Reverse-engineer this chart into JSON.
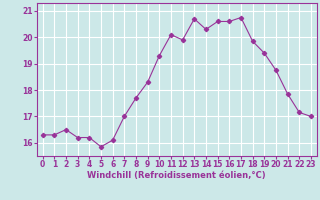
{
  "x": [
    0,
    1,
    2,
    3,
    4,
    5,
    6,
    7,
    8,
    9,
    10,
    11,
    12,
    13,
    14,
    15,
    16,
    17,
    18,
    19,
    20,
    21,
    22,
    23
  ],
  "y": [
    16.3,
    16.3,
    16.5,
    16.2,
    16.2,
    15.85,
    16.1,
    17.0,
    17.7,
    18.3,
    19.3,
    20.1,
    19.9,
    20.7,
    20.3,
    20.6,
    20.6,
    20.75,
    19.85,
    19.4,
    18.75,
    17.85,
    17.15,
    17.0
  ],
  "line_color": "#993399",
  "marker": "D",
  "marker_size": 2.2,
  "bg_color": "#cce8e8",
  "grid_color": "#ffffff",
  "xlabel": "Windchill (Refroidissement éolien,°C)",
  "xlabel_color": "#993399",
  "tick_color": "#993399",
  "ylim": [
    15.5,
    21.3
  ],
  "xlim": [
    -0.5,
    23.5
  ],
  "yticks": [
    16,
    17,
    18,
    19,
    20,
    21
  ],
  "xticks": [
    0,
    1,
    2,
    3,
    4,
    5,
    6,
    7,
    8,
    9,
    10,
    11,
    12,
    13,
    14,
    15,
    16,
    17,
    18,
    19,
    20,
    21,
    22,
    23
  ],
  "tick_fontsize": 5.5,
  "xlabel_fontsize": 6.0
}
